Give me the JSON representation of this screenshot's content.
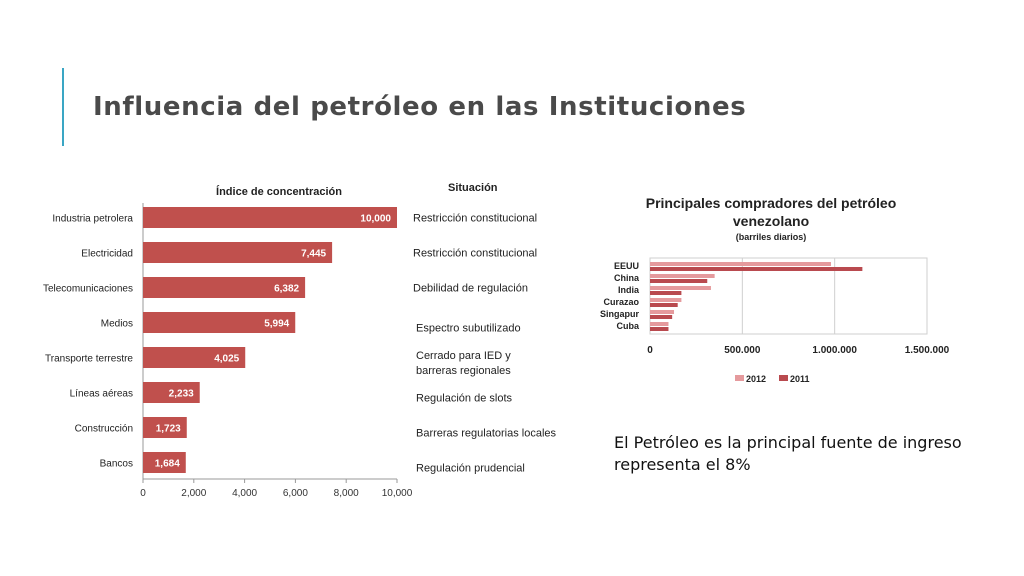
{
  "slide": {
    "title": "Influencia del petróleo en las Instituciones",
    "caption_line1": "El Petróleo es la principal fuente de ingreso",
    "caption_line2": "representa el 8%"
  },
  "chart_data": [
    {
      "type": "bar",
      "orientation": "horizontal",
      "title": "Índice de concentración",
      "status_header": "Situación",
      "categories": [
        "Industria petrolera",
        "Electricidad",
        "Telecomunicaciones",
        "Medios",
        "Transporte terrestre",
        "Líneas aéreas",
        "Construcción",
        "Bancos"
      ],
      "values": [
        10000,
        7445,
        6382,
        5994,
        4025,
        2233,
        1723,
        1684
      ],
      "value_labels": [
        "10,000",
        "7,445",
        "6,382",
        "5,994",
        "4,025",
        "2,233",
        "1,723",
        "1,684"
      ],
      "status": [
        [
          "Restricción constitucional"
        ],
        [
          "Restricción constitucional"
        ],
        [
          "Debilidad de regulación"
        ],
        [
          "Espectro subutilizado"
        ],
        [
          "Cerrado para IED y",
          "barreras regionales"
        ],
        [
          "Regulación de slots"
        ],
        [
          "Barreras regulatorias locales"
        ],
        [
          "Regulación prudencial"
        ]
      ],
      "xlim": [
        0,
        10000
      ],
      "xticks": [
        0,
        2000,
        4000,
        6000,
        8000,
        10000
      ],
      "xtick_labels": [
        "0",
        "2,000",
        "4,000",
        "6,000",
        "8,000",
        "10,000"
      ],
      "bar_color": "#c0504d",
      "grid": false
    },
    {
      "type": "bar",
      "orientation": "horizontal",
      "title_line1": "Principales compradores del petróleo",
      "title_line2": "venezolano",
      "subtitle": "(barriles diarios)",
      "categories": [
        "EEUU",
        "China",
        "India",
        "Curazao",
        "Singapur",
        "Cuba"
      ],
      "series": [
        {
          "name": "2012",
          "color": "#e59a9d",
          "values": [
            980000,
            350000,
            330000,
            170000,
            130000,
            100000
          ]
        },
        {
          "name": "2011",
          "color": "#b94a4f",
          "values": [
            1150000,
            310000,
            170000,
            150000,
            120000,
            100000
          ]
        }
      ],
      "xlim": [
        0,
        1500000
      ],
      "xticks": [
        0,
        500000,
        1000000,
        1500000
      ],
      "xtick_labels": [
        "0",
        "500.000",
        "1.000.000",
        "1.500.000"
      ],
      "grid": true,
      "legend_position": "bottom"
    }
  ]
}
